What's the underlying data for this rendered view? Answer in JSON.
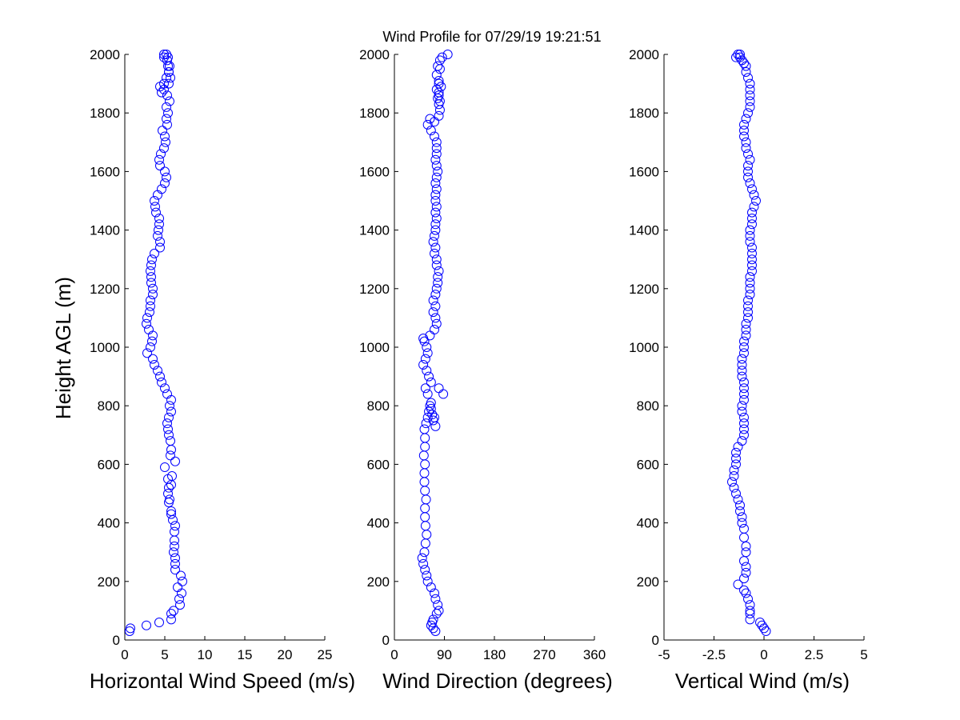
{
  "figure": {
    "title": "Wind Profile for  07/29/19 19:21:51",
    "ylabel": "Height AGL (m)"
  },
  "chart_data": [
    {
      "type": "scatter",
      "xlabel": "Horizontal Wind Speed (m/s)",
      "ylabel": "Height AGL (m)",
      "xlim": [
        0,
        25
      ],
      "ylim": [
        0,
        2000
      ],
      "xticks": [
        "0",
        "5",
        "10",
        "15",
        "20",
        "25"
      ],
      "yticks": [
        "0",
        "200",
        "400",
        "600",
        "800",
        "1000",
        "1200",
        "1400",
        "1600",
        "1800",
        "2000"
      ],
      "marker": "open-circle",
      "color": "#0000ff",
      "x": [
        0.6,
        0.7,
        2.7,
        4.3,
        5.8,
        5.8,
        6.1,
        6.9,
        6.8,
        7.1,
        6.6,
        7.2,
        7.0,
        6.3,
        6.3,
        6.3,
        6.1,
        6.2,
        6.2,
        6.2,
        6.3,
        6.0,
        5.8,
        5.8,
        5.5,
        5.6,
        5.4,
        5.5,
        5.8,
        5.4,
        5.9,
        5.0,
        6.3,
        5.7,
        5.8,
        5.7,
        5.5,
        5.4,
        5.3,
        5.5,
        5.8,
        5.6,
        5.8,
        5.3,
        5.0,
        4.6,
        4.4,
        4.1,
        3.7,
        3.5,
        2.8,
        3.2,
        3.4,
        3.5,
        3.0,
        2.7,
        2.8,
        3.1,
        3.2,
        3.2,
        3.5,
        3.5,
        3.3,
        3.3,
        3.2,
        3.3,
        3.4,
        3.7,
        4.4,
        4.4,
        4.1,
        4.2,
        4.3,
        4.3,
        3.9,
        3.8,
        3.7,
        4.1,
        4.6,
        5.0,
        5.2,
        5.0,
        4.4,
        4.3,
        4.5,
        4.9,
        5.1,
        5.0,
        4.7,
        5.3,
        5.2,
        5.4,
        5.2,
        5.6,
        5.3,
        4.9,
        5.5,
        5.7,
        5.5,
        5.4,
        5.3,
        4.9,
        4.9,
        5.2,
        5.4,
        5.6,
        5.5,
        5.2,
        4.9,
        4.4,
        4.6
      ],
      "y": [
        30,
        40,
        50,
        60,
        70,
        90,
        100,
        120,
        140,
        160,
        180,
        200,
        220,
        240,
        260,
        280,
        300,
        320,
        340,
        370,
        390,
        410,
        430,
        440,
        470,
        480,
        500,
        520,
        530,
        550,
        560,
        590,
        610,
        630,
        650,
        680,
        700,
        720,
        740,
        760,
        780,
        800,
        820,
        840,
        860,
        880,
        900,
        920,
        940,
        960,
        980,
        1000,
        1020,
        1040,
        1060,
        1080,
        1100,
        1120,
        1140,
        1160,
        1180,
        1200,
        1220,
        1240,
        1260,
        1280,
        1300,
        1320,
        1340,
        1360,
        1380,
        1400,
        1420,
        1440,
        1460,
        1480,
        1500,
        1520,
        1540,
        1560,
        1580,
        1600,
        1620,
        1640,
        1660,
        1680,
        1700,
        1720,
        1740,
        1760,
        1780,
        1800,
        1820,
        1840,
        1860,
        1880,
        1900,
        1920,
        1940,
        1960,
        1980,
        1990,
        2000,
        2000,
        1990,
        1960,
        1940,
        1920,
        1900,
        1890,
        1870
      ]
    },
    {
      "type": "scatter",
      "xlabel": "Wind Direction (degrees)",
      "ylabel": "",
      "xlim": [
        0,
        360
      ],
      "ylim": [
        0,
        2000
      ],
      "xticks": [
        "0",
        "90",
        "180",
        "270",
        "360"
      ],
      "yticks": [
        "0",
        "200",
        "400",
        "600",
        "800",
        "1000",
        "1200",
        "1400",
        "1600",
        "1800",
        "2000"
      ],
      "marker": "open-circle",
      "color": "#0000ff",
      "x": [
        74,
        70,
        66,
        68,
        70,
        76,
        80,
        78,
        74,
        72,
        66,
        60,
        58,
        55,
        52,
        50,
        54,
        56,
        58,
        56,
        55,
        55,
        57,
        55,
        54,
        54,
        55,
        53,
        55,
        55,
        54,
        57,
        60,
        62,
        64,
        66,
        68,
        72,
        70,
        74,
        66,
        60,
        56,
        66,
        80,
        88,
        62,
        58,
        52,
        56,
        60,
        58,
        54,
        52,
        64,
        72,
        76,
        74,
        70,
        74,
        70,
        74,
        76,
        78,
        78,
        80,
        76,
        76,
        72,
        74,
        70,
        72,
        74,
        74,
        76,
        74,
        76,
        74,
        74,
        76,
        74,
        76,
        78,
        76,
        74,
        76,
        76,
        76,
        72,
        66,
        60,
        64,
        72,
        80,
        82,
        80,
        78,
        80,
        84,
        80,
        76,
        82,
        96,
        86,
        82,
        78,
        80,
        76,
        80,
        82
      ],
      "y": [
        30,
        40,
        50,
        60,
        70,
        90,
        100,
        120,
        140,
        160,
        180,
        200,
        220,
        240,
        260,
        280,
        300,
        330,
        360,
        390,
        420,
        450,
        480,
        510,
        540,
        570,
        600,
        630,
        660,
        690,
        720,
        740,
        760,
        780,
        800,
        790,
        770,
        760,
        750,
        730,
        810,
        840,
        860,
        880,
        860,
        840,
        900,
        920,
        940,
        960,
        980,
        1000,
        1020,
        1030,
        1040,
        1060,
        1080,
        1100,
        1120,
        1140,
        1160,
        1180,
        1200,
        1220,
        1240,
        1260,
        1280,
        1300,
        1320,
        1340,
        1360,
        1380,
        1400,
        1420,
        1440,
        1460,
        1480,
        1500,
        1520,
        1540,
        1560,
        1580,
        1600,
        1620,
        1640,
        1660,
        1680,
        1700,
        1720,
        1740,
        1760,
        1780,
        1770,
        1790,
        1810,
        1830,
        1850,
        1870,
        1890,
        1910,
        1930,
        1950,
        2000,
        1990,
        1980,
        1960,
        1900,
        1880,
        1860,
        1840
      ]
    },
    {
      "type": "scatter",
      "xlabel": "Vertical Wind (m/s)",
      "ylabel": "",
      "xlim": [
        -5,
        5
      ],
      "ylim": [
        0,
        2000
      ],
      "xticks": [
        "-5",
        "-2.5",
        "0",
        "2.5",
        "5"
      ],
      "yticks": [
        "0",
        "200",
        "400",
        "600",
        "800",
        "1000",
        "1200",
        "1400",
        "1600",
        "1800",
        "2000"
      ],
      "marker": "open-circle",
      "color": "#0000ff",
      "x": [
        0.1,
        0.0,
        -0.1,
        -0.2,
        -0.7,
        -0.7,
        -0.7,
        -0.7,
        -0.8,
        -0.9,
        -1.0,
        -1.3,
        -1.0,
        -0.9,
        -0.9,
        -1.0,
        -0.9,
        -0.9,
        -1.0,
        -1.0,
        -1.1,
        -1.1,
        -1.2,
        -1.2,
        -1.3,
        -1.4,
        -1.5,
        -1.6,
        -1.5,
        -1.5,
        -1.4,
        -1.4,
        -1.4,
        -1.3,
        -1.1,
        -1.0,
        -1.0,
        -1.0,
        -1.0,
        -1.1,
        -1.1,
        -1.0,
        -1.0,
        -1.0,
        -1.0,
        -1.1,
        -1.1,
        -1.1,
        -1.1,
        -1.0,
        -1.0,
        -1.0,
        -0.9,
        -0.9,
        -0.9,
        -0.8,
        -0.8,
        -0.8,
        -0.8,
        -0.7,
        -0.7,
        -0.7,
        -0.7,
        -0.6,
        -0.6,
        -0.6,
        -0.6,
        -0.6,
        -0.7,
        -0.7,
        -0.7,
        -0.6,
        -0.6,
        -0.6,
        -0.5,
        -0.4,
        -0.5,
        -0.6,
        -0.7,
        -0.8,
        -0.8,
        -0.8,
        -0.7,
        -0.8,
        -0.9,
        -0.9,
        -1.0,
        -1.0,
        -1.0,
        -0.9,
        -0.8,
        -0.7,
        -0.7,
        -0.7,
        -0.7,
        -0.7,
        -0.8,
        -0.9,
        -0.9,
        -1.0,
        -1.1,
        -1.2,
        -1.3,
        -1.4,
        -1.2
      ],
      "y": [
        30,
        40,
        50,
        60,
        70,
        90,
        100,
        120,
        140,
        160,
        170,
        190,
        210,
        230,
        250,
        270,
        300,
        320,
        350,
        380,
        400,
        420,
        440,
        460,
        480,
        500,
        520,
        540,
        560,
        580,
        600,
        620,
        640,
        660,
        680,
        700,
        720,
        740,
        760,
        780,
        800,
        820,
        840,
        860,
        880,
        900,
        920,
        940,
        960,
        980,
        1000,
        1020,
        1040,
        1060,
        1080,
        1100,
        1120,
        1140,
        1160,
        1180,
        1200,
        1220,
        1240,
        1260,
        1280,
        1300,
        1320,
        1340,
        1360,
        1380,
        1400,
        1420,
        1440,
        1460,
        1480,
        1500,
        1520,
        1540,
        1560,
        1580,
        1600,
        1620,
        1640,
        1660,
        1680,
        1700,
        1720,
        1740,
        1760,
        1780,
        1800,
        1820,
        1840,
        1860,
        1880,
        1900,
        1920,
        1940,
        1960,
        1970,
        1980,
        1990,
        2000,
        1990,
        2000
      ]
    }
  ]
}
